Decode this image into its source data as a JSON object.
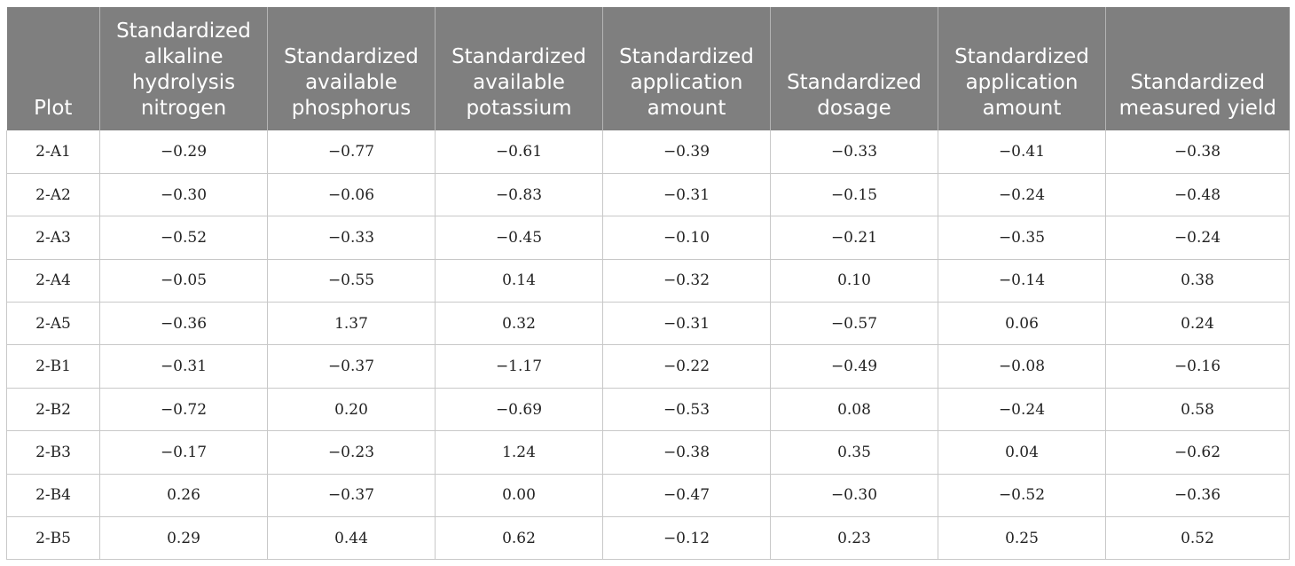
{
  "table": {
    "headers": [
      "Plot",
      "Standardized alkaline hydrolysis nitrogen",
      "Standardized available phosphorus",
      "Standardized available potassium",
      "Standardized application amount",
      "Standardized dosage",
      "Standardized application amount",
      "Standardized measured yield"
    ],
    "rows": [
      [
        "2-A1",
        "−0.29",
        "−0.77",
        "−0.61",
        "−0.39",
        "−0.33",
        "−0.41",
        "−0.38"
      ],
      [
        "2-A2",
        "−0.30",
        "−0.06",
        "−0.83",
        "−0.31",
        "−0.15",
        "−0.24",
        "−0.48"
      ],
      [
        "2-A3",
        "−0.52",
        "−0.33",
        "−0.45",
        "−0.10",
        "−0.21",
        "−0.35",
        "−0.24"
      ],
      [
        "2-A4",
        "−0.05",
        "−0.55",
        "0.14",
        "−0.32",
        "0.10",
        "−0.14",
        "0.38"
      ],
      [
        "2-A5",
        "−0.36",
        "1.37",
        "0.32",
        "−0.31",
        "−0.57",
        "0.06",
        "0.24"
      ],
      [
        "2-B1",
        "−0.31",
        "−0.37",
        "−1.17",
        "−0.22",
        "−0.49",
        "−0.08",
        "−0.16"
      ],
      [
        "2-B2",
        "−0.72",
        "0.20",
        "−0.69",
        "−0.53",
        "0.08",
        "−0.24",
        "0.58"
      ],
      [
        "2-B3",
        "−0.17",
        "−0.23",
        "1.24",
        "−0.38",
        "0.35",
        "0.04",
        "−0.62"
      ],
      [
        "2-B4",
        "0.26",
        "−0.37",
        "0.00",
        "−0.47",
        "−0.30",
        "−0.52",
        "−0.36"
      ],
      [
        "2-B5",
        "0.29",
        "0.44",
        "0.62",
        "−0.12",
        "0.23",
        "0.25",
        "0.52"
      ]
    ]
  },
  "colors": {
    "header_bg": "#7f7f7f",
    "header_text": "#ffffff",
    "grid": "#c8c8c8"
  }
}
